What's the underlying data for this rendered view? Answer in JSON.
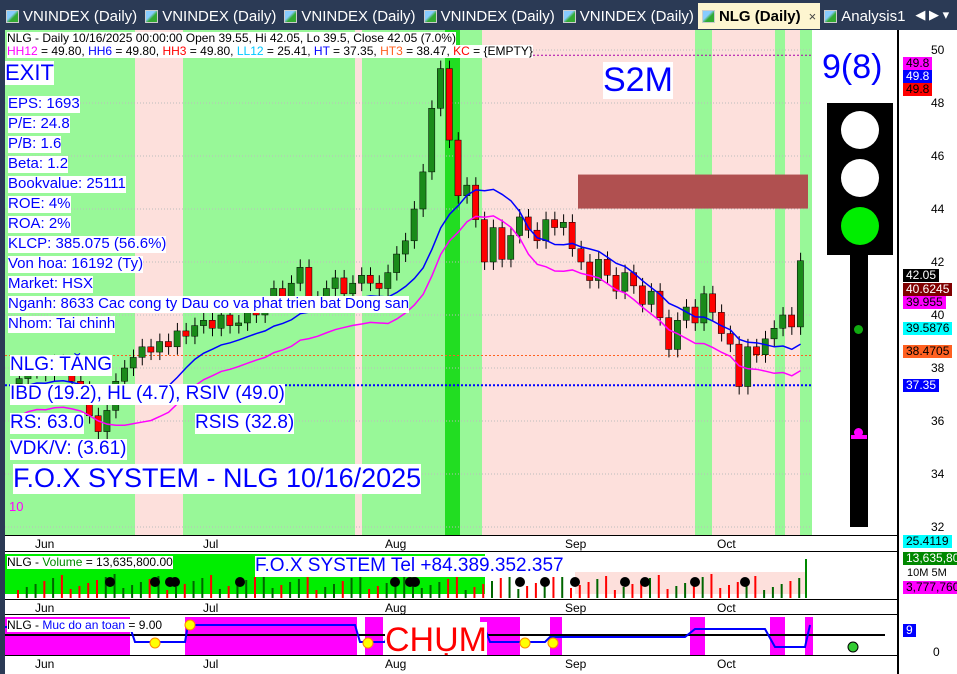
{
  "tabs": [
    {
      "label": "VNINDEX (Daily)"
    },
    {
      "label": "VNINDEX (Daily)"
    },
    {
      "label": "VNINDEX (Daily)"
    },
    {
      "label": "VNINDEX (Daily)"
    },
    {
      "label": "VNINDEX (Daily)"
    },
    {
      "label": "NLG (Daily)",
      "active": true
    },
    {
      "label": "Analysis1"
    }
  ],
  "header": {
    "line1": "NLG - Daily 10/16/2025 00:00:00 Open 39.55, Hi 42.05, Lo 39.5, Close 42.05 (7.0%)",
    "line2": [
      {
        "k": "HH12",
        "v": " = 49.80, ",
        "c": "#ff00ff"
      },
      {
        "k": "HH6",
        "v": " = 49.80, ",
        "c": "#0000ff"
      },
      {
        "k": "HH3",
        "v": " = 49.80, ",
        "c": "#ff0000"
      },
      {
        "k": "LL12",
        "v": " = 25.41, ",
        "c": "#00c8ff"
      },
      {
        "k": "HT",
        "v": "  = 37.35, ",
        "c": "#0000ff"
      },
      {
        "k": "HT3",
        "v": "  = 38.47, ",
        "c": "#ff6020"
      },
      {
        "k": "KC",
        "v": " = {EMPTY}",
        "c": "#ff0000"
      }
    ]
  },
  "labels": {
    "exit": "EXIT",
    "s2m": "S2M",
    "signal": "9(8)",
    "fundamentals": [
      "EPS: 1693",
      "P/E: 24.8",
      "P/B: 1.6",
      "Beta: 1.2",
      "Bookvalue: 25111",
      "ROE: 4%",
      "ROA: 2%",
      "KLCP: 385.075 (56.6%)",
      "Von hoa: 16192 (Ty)",
      "Market: HSX",
      "Nganh: 8633 Cac cong ty Dau co va phat trien bat Dong san",
      "Nhom: Tai chinh"
    ],
    "trend": "NLG: TĂNG",
    "ibd": "IBD (19.2), HL (4.7), RSIV (49.0)",
    "rs": "RS: 63.0",
    "rsis": "RSIS (32.8)",
    "vdk": "VDK/V:  (3.61)",
    "title": "F.O.X SYSTEM - NLG 10/16/2025",
    "ten": "10"
  },
  "price_axis": {
    "ticks": [
      "50",
      "48",
      "46",
      "44",
      "42",
      "40",
      "38",
      "36",
      "34",
      "32"
    ],
    "tick_values": [
      50,
      48,
      46,
      44,
      42,
      40,
      38,
      36,
      34,
      32
    ],
    "tags": [
      {
        "text": "49.8",
        "bg": "#ff00ff",
        "fg": "#000",
        "v": 50.2
      },
      {
        "text": "49.8",
        "bg": "#0000ff",
        "fg": "#fff",
        "v": 49.8
      },
      {
        "text": "49.8",
        "bg": "#ff0000",
        "fg": "#000",
        "v": 49.4
      },
      {
        "text": "42.05",
        "bg": "#000",
        "fg": "#fff",
        "v": 42.05
      },
      {
        "text": "40.6245",
        "bg": "#800000",
        "fg": "#fff",
        "v": 40.62
      },
      {
        "text": "39.955",
        "bg": "#ff00ff",
        "fg": "#000",
        "v": 39.96
      },
      {
        "text": "39.5876",
        "bg": "#00ffff",
        "fg": "#000",
        "v": 39.4
      },
      {
        "text": "38.4705",
        "bg": "#ff6020",
        "fg": "#000",
        "v": 38.47
      },
      {
        "text": "37.35",
        "bg": "#0000ff",
        "fg": "#fff",
        "v": 37.35
      },
      {
        "text": "25.4119",
        "bg": "#00ffff",
        "fg": "#000",
        "v": 31.6
      }
    ]
  },
  "months": [
    "Jun",
    "Jul",
    "Aug",
    "Sep",
    "Oct"
  ],
  "volume": {
    "label_prefix": "NLG - ",
    "label_name": "Volume",
    "label_value": " = 13,635,800.00",
    "tel": "F.O.X SYSTEM Tel +84.389.352.357",
    "tag_current": "13,635,800",
    "tag_avg": "3,777,760",
    "axis_unit": "10M\n5M"
  },
  "safety": {
    "label_prefix": "NLG - ",
    "label_name": "Muc do an toan",
    "label_value": " = 9.00",
    "tag": "9",
    "axis_zero": "0",
    "chum": "CHỤM"
  },
  "colors": {
    "green_bg": "#98f898",
    "pink_bg": "#fde0dc",
    "bright_green": "#22dd22",
    "up": "#1a8a1a",
    "down": "#ff0000"
  },
  "traffic_light": {
    "lit": "green"
  },
  "ohlc_closes": [
    37.6,
    37.9,
    38.0,
    37.8,
    38.2,
    38.0,
    37.5,
    37.2,
    36.2,
    35.6,
    36.4,
    37.5,
    38.0,
    38.4,
    38.8,
    38.6,
    39.0,
    38.8,
    39.4,
    39.2,
    39.6,
    39.8,
    39.5,
    40.0,
    39.6,
    39.7,
    40.2,
    40.0,
    40.4,
    41.0,
    40.6,
    41.2,
    41.8,
    40.6,
    40.5,
    41.0,
    41.4,
    40.8,
    41.2,
    41.5,
    41.2,
    41.0,
    41.6,
    42.3,
    42.8,
    44.0,
    45.4,
    47.8,
    49.3,
    46.6,
    44.5,
    44.9,
    43.6,
    42.0,
    43.3,
    42.1,
    43.0,
    43.7,
    43.2,
    42.8,
    43.6,
    43.3,
    43.5,
    42.5,
    42.0,
    41.3,
    42.1,
    41.5,
    40.9,
    41.6,
    41.1,
    40.4,
    40.9,
    39.9,
    38.7,
    39.8,
    40.3,
    39.7,
    40.8,
    40.1,
    39.3,
    38.9,
    37.3,
    38.8,
    38.5,
    39.1,
    39.5,
    40.0,
    39.55,
    42.05
  ]
}
